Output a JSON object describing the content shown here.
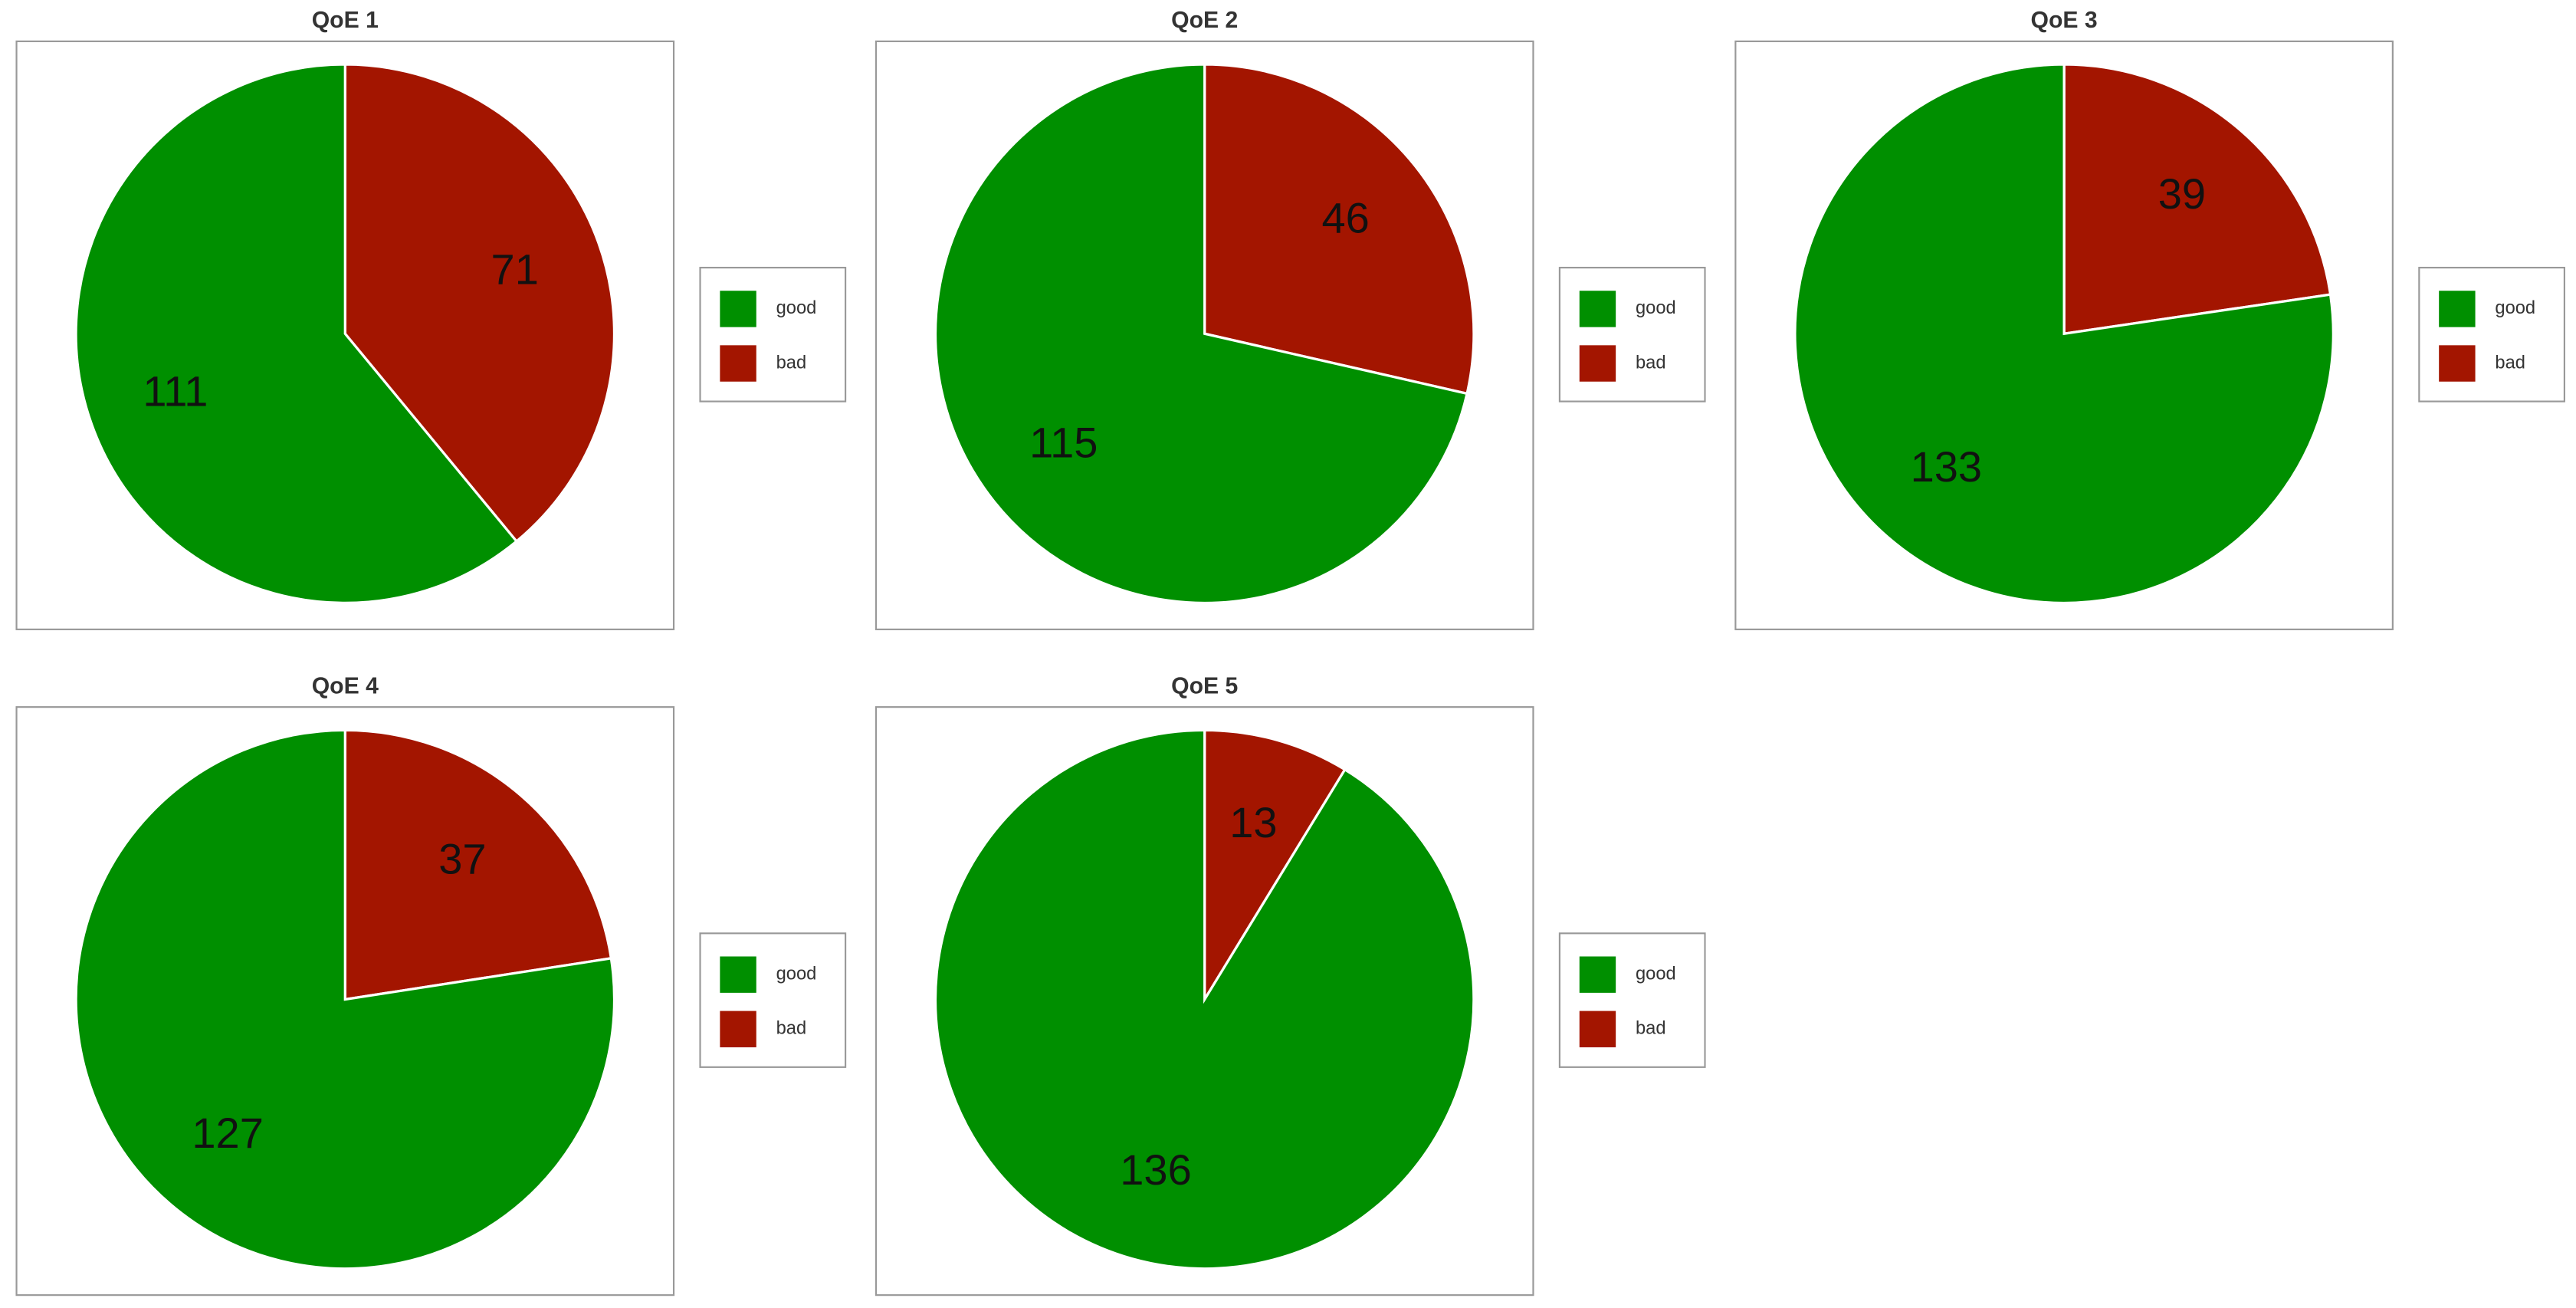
{
  "chart_data": [
    {
      "type": "pie",
      "title": "QoE 1",
      "categories": [
        "good",
        "bad"
      ],
      "values": [
        111,
        71
      ],
      "colors": [
        "#008f00",
        "#a31500"
      ]
    },
    {
      "type": "pie",
      "title": "QoE 2",
      "categories": [
        "good",
        "bad"
      ],
      "values": [
        115,
        46
      ],
      "colors": [
        "#008f00",
        "#a31500"
      ]
    },
    {
      "type": "pie",
      "title": "QoE 3",
      "categories": [
        "good",
        "bad"
      ],
      "values": [
        133,
        39
      ],
      "colors": [
        "#008f00",
        "#a31500"
      ]
    },
    {
      "type": "pie",
      "title": "QoE 4",
      "categories": [
        "good",
        "bad"
      ],
      "values": [
        127,
        37
      ],
      "colors": [
        "#008f00",
        "#a31500"
      ]
    },
    {
      "type": "pie",
      "title": "QoE 5",
      "categories": [
        "good",
        "bad"
      ],
      "values": [
        136,
        13
      ],
      "colors": [
        "#008f00",
        "#a31500"
      ]
    }
  ]
}
